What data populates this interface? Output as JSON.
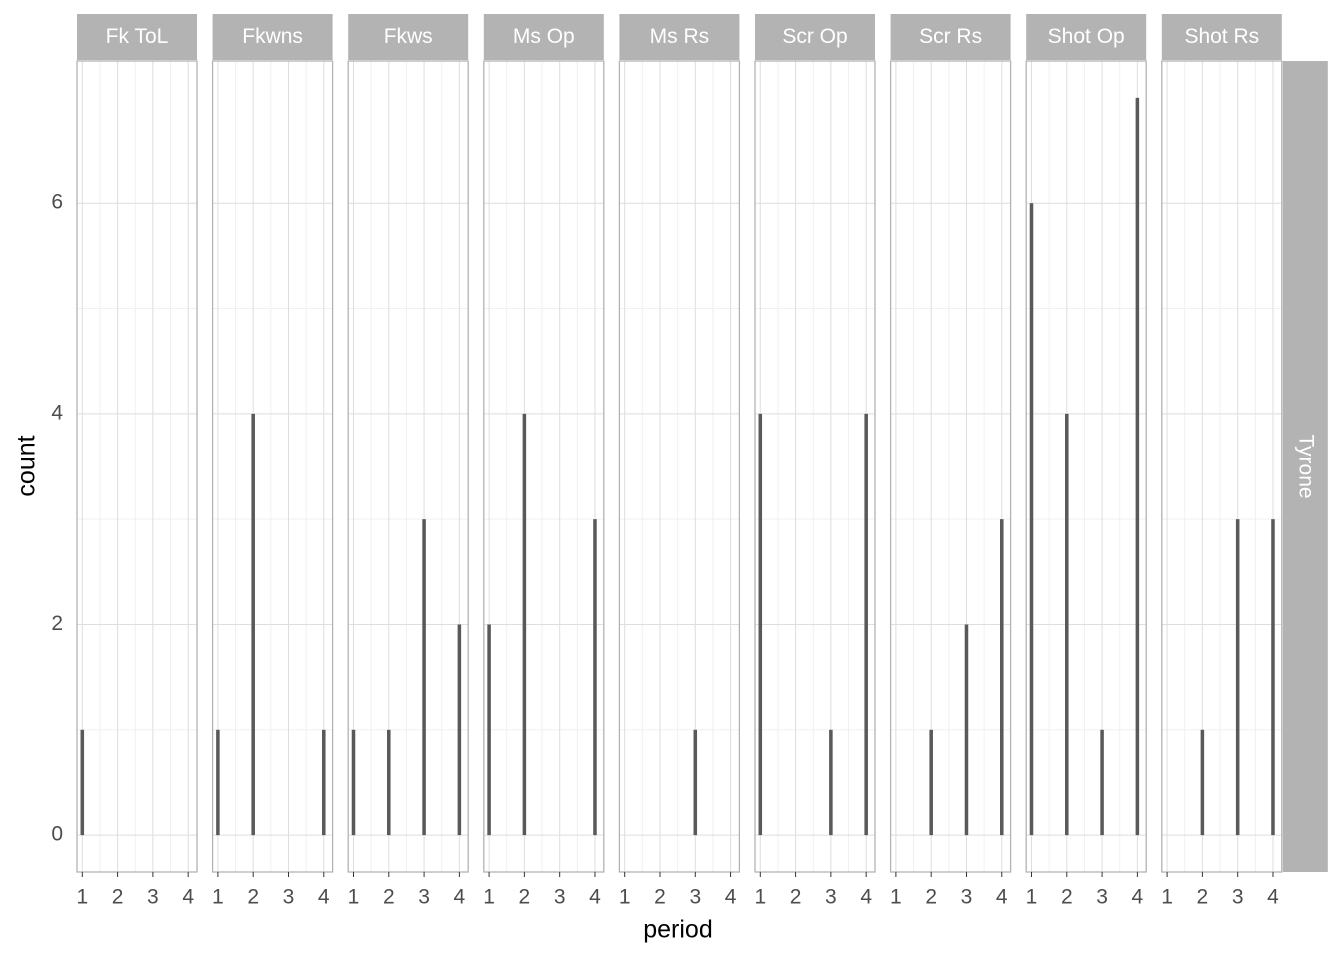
{
  "chart_data": {
    "type": "bar",
    "xlabel": "period",
    "ylabel": "count",
    "row_label": "Tyrone",
    "color": "#595959",
    "grid": true,
    "xlim": [
      0.85,
      4.25
    ],
    "ylim": [
      -0.35,
      7.35
    ],
    "xticks": [
      1,
      2,
      3,
      4
    ],
    "yticks": [
      0,
      2,
      4,
      6
    ],
    "panels": [
      {
        "title": "Fk ToL",
        "x": [
          1
        ],
        "values": [
          1
        ]
      },
      {
        "title": "Fkwns",
        "x": [
          1,
          2,
          4
        ],
        "values": [
          1,
          4,
          1
        ]
      },
      {
        "title": "Fkws",
        "x": [
          1,
          2,
          3,
          4
        ],
        "values": [
          1,
          1,
          3,
          2
        ]
      },
      {
        "title": "Ms Op",
        "x": [
          1,
          2,
          4
        ],
        "values": [
          2,
          4,
          3
        ]
      },
      {
        "title": "Ms Rs",
        "x": [
          3
        ],
        "values": [
          1
        ]
      },
      {
        "title": "Scr Op",
        "x": [
          1,
          3,
          4
        ],
        "values": [
          4,
          1,
          4
        ]
      },
      {
        "title": "Scr Rs",
        "x": [
          2,
          3,
          4
        ],
        "values": [
          1,
          2,
          3
        ]
      },
      {
        "title": "Shot Op",
        "x": [
          1,
          2,
          3,
          4
        ],
        "values": [
          6,
          4,
          1,
          7
        ]
      },
      {
        "title": "Shot Rs",
        "x": [
          2,
          3,
          4
        ],
        "values": [
          1,
          3,
          3
        ]
      }
    ]
  }
}
